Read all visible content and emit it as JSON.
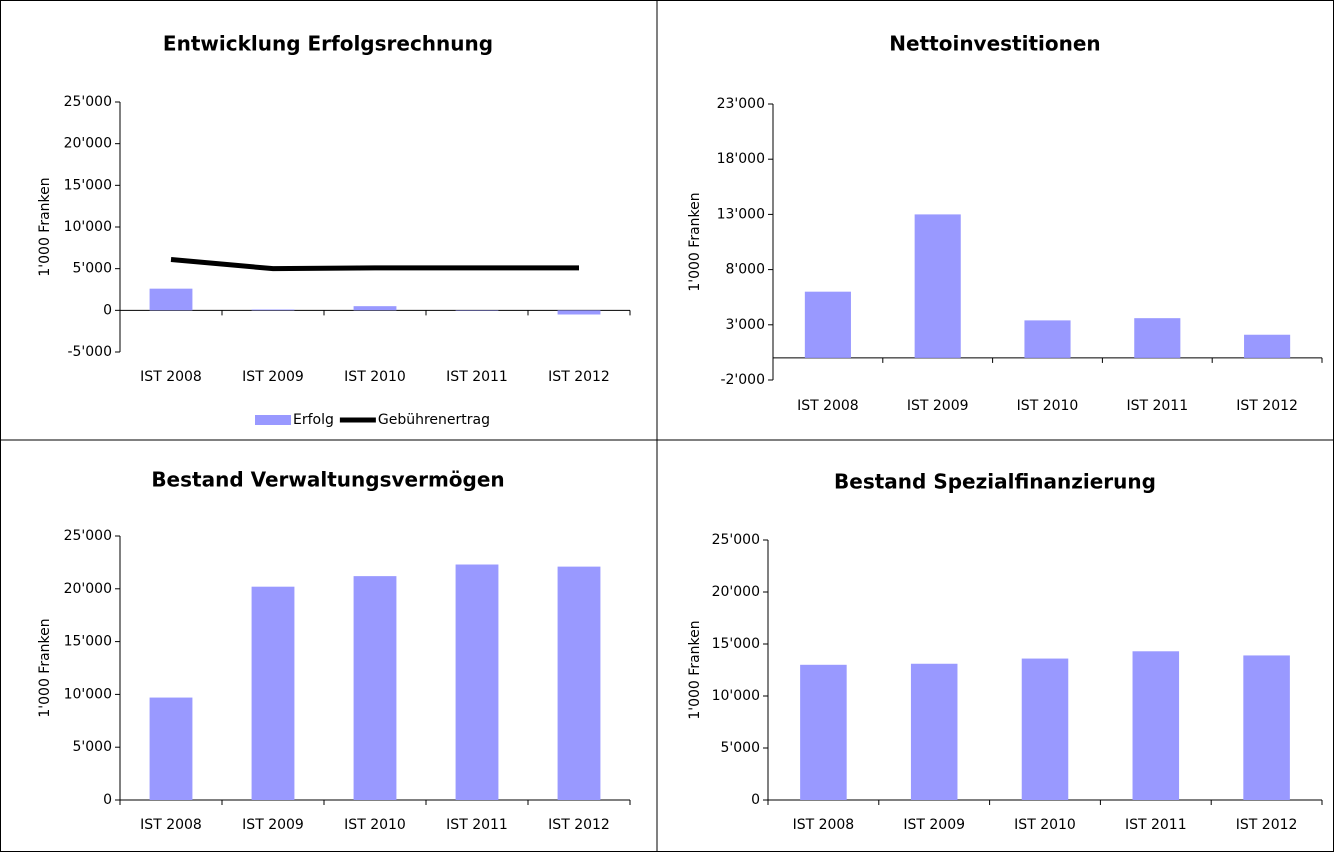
{
  "chart_data": [
    {
      "type": "bar",
      "title": "Entwicklung Erfolgsrechnung",
      "y_label": "1'000 Franken",
      "categories": [
        "IST 2008",
        "IST 2009",
        "IST 2010",
        "IST 2011",
        "IST 2012"
      ],
      "series": [
        {
          "name": "Erfolg",
          "type": "bar",
          "color": "#9999ff",
          "values": [
            2600,
            100,
            500,
            -50,
            -500
          ]
        },
        {
          "name": "Gebührenertrag",
          "type": "line",
          "color": "#000000",
          "values": [
            6100,
            5000,
            5100,
            5100,
            5100
          ]
        }
      ],
      "ylim": [
        -5000,
        25000
      ],
      "yticks": [
        {
          "value": -5000,
          "label": "-5'000"
        },
        0,
        {
          "value": 5000,
          "label": "5'000"
        },
        {
          "value": 10000,
          "label": "10'000"
        },
        {
          "value": 15000,
          "label": "15'000"
        },
        {
          "value": 20000,
          "label": "20'000"
        },
        {
          "value": 25000,
          "label": "25'000"
        }
      ],
      "legend": "bottom"
    },
    {
      "type": "bar",
      "title": "Nettoinvestitionen",
      "y_label": "1'000 Franken",
      "categories": [
        "IST 2008",
        "IST 2009",
        "IST 2010",
        "IST 2011",
        "IST 2012"
      ],
      "series": [
        {
          "name": "Nettoinvestitionen",
          "type": "bar",
          "color": "#9999ff",
          "values": [
            6000,
            13000,
            3400,
            3600,
            2100
          ]
        }
      ],
      "ylim": [
        -2000,
        23000
      ],
      "yticks": [
        {
          "value": -2000,
          "label": "-2'000"
        },
        {
          "value": 3000,
          "label": "3'000"
        },
        {
          "value": 8000,
          "label": "8'000"
        },
        {
          "value": 13000,
          "label": "13'000"
        },
        {
          "value": 18000,
          "label": "18'000"
        },
        {
          "value": 23000,
          "label": "23'000"
        }
      ]
    },
    {
      "type": "bar",
      "title": "Bestand Verwaltungsvermögen",
      "y_label": "1'000 Franken",
      "categories": [
        "IST 2008",
        "IST 2009",
        "IST 2010",
        "IST 2011",
        "IST 2012"
      ],
      "series": [
        {
          "name": "Bestand Verwaltungsvermögen",
          "type": "bar",
          "color": "#9999ff",
          "values": [
            9700,
            20200,
            21200,
            22300,
            22100
          ]
        }
      ],
      "ylim": [
        0,
        25000
      ],
      "yticks": [
        0,
        {
          "value": 5000,
          "label": "5'000"
        },
        {
          "value": 10000,
          "label": "10'000"
        },
        {
          "value": 15000,
          "label": "15'000"
        },
        {
          "value": 20000,
          "label": "20'000"
        },
        {
          "value": 25000,
          "label": "25'000"
        }
      ]
    },
    {
      "type": "bar",
      "title": "Bestand Spezialfinanzierung",
      "y_label": "1'000 Franken",
      "categories": [
        "IST 2008",
        "IST 2009",
        "IST 2010",
        "IST 2011",
        "IST 2012"
      ],
      "series": [
        {
          "name": "Bestand Spezialfinanzierung",
          "type": "bar",
          "color": "#9999ff",
          "values": [
            13000,
            13100,
            13600,
            14300,
            13900
          ]
        }
      ],
      "ylim": [
        0,
        25000
      ],
      "yticks": [
        0,
        {
          "value": 5000,
          "label": "5'000"
        },
        {
          "value": 10000,
          "label": "10'000"
        },
        {
          "value": 15000,
          "label": "15'000"
        },
        {
          "value": 20000,
          "label": "20'000"
        },
        {
          "value": 25000,
          "label": "25'000"
        }
      ]
    }
  ]
}
